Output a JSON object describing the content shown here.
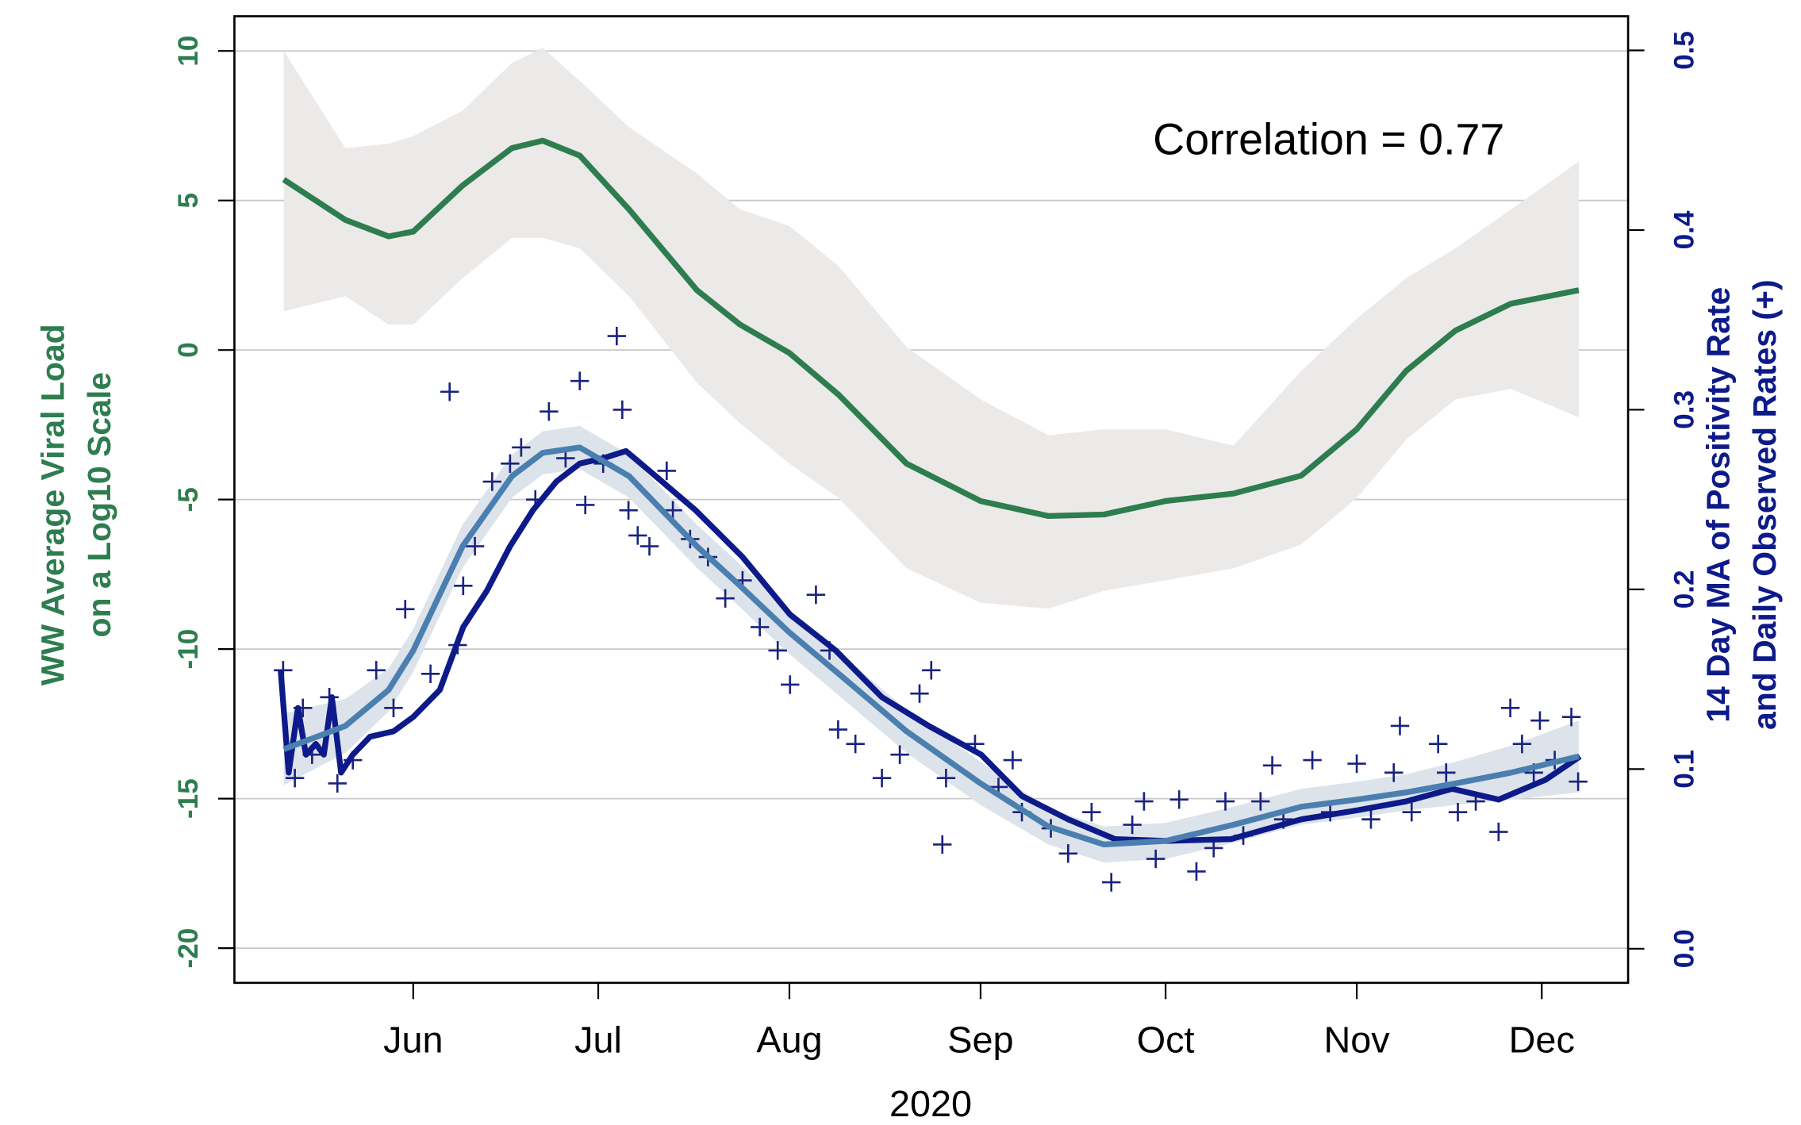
{
  "chart_data": {
    "type": "line",
    "annotation": "Correlation = 0.77",
    "xlabel": "2020",
    "ylabel": [
      "WW Average Viral Load",
      "on a Log10 Scale"
    ],
    "y2label": [
      "14 Day MA of Positivity Rate",
      "and Daily Observed Rates (+)"
    ],
    "xlim": [
      123,
      349
    ],
    "xticks": [
      {
        "value": 152,
        "label": "Jun"
      },
      {
        "value": 182,
        "label": "Jul"
      },
      {
        "value": 213,
        "label": "Aug"
      },
      {
        "value": 244,
        "label": "Sep"
      },
      {
        "value": 274,
        "label": "Oct"
      },
      {
        "value": 305,
        "label": "Nov"
      },
      {
        "value": 335,
        "label": "Dec"
      }
    ],
    "ylim": [
      -21.16,
      11.16
    ],
    "yticks": [
      -20,
      -15,
      -10,
      -5,
      0,
      5,
      10
    ],
    "y2lim": [
      -0.019,
      0.519
    ],
    "y2ticks": [
      {
        "value": 0,
        "label": "0.0"
      },
      0.1,
      0.2,
      0.3,
      0.4,
      0.5
    ],
    "grid": true,
    "ylabel_color": "#2e7d4f",
    "y2label_color": "#0d1a8a",
    "series": [
      {
        "type": "line",
        "axis": "y",
        "color": "#2e7d4f",
        "band_color": "#ece9e9",
        "x": [
          131,
          141,
          148,
          152,
          160,
          168,
          173,
          179,
          187,
          198,
          205,
          213,
          221,
          232,
          244,
          255,
          264,
          274,
          285,
          296,
          305,
          313,
          321,
          330,
          341
        ],
        "values": [
          5.7,
          4.35,
          3.8,
          3.96,
          5.5,
          6.75,
          7.0,
          6.5,
          4.7,
          2.0,
          0.85,
          -0.1,
          -1.5,
          -3.8,
          -5.05,
          -5.55,
          -5.5,
          -5.05,
          -4.8,
          -4.2,
          -2.65,
          -0.7,
          0.65,
          1.55,
          2.0
        ],
        "lower": [
          1.3,
          1.8,
          0.85,
          0.85,
          2.4,
          3.75,
          3.75,
          3.4,
          1.8,
          -1.1,
          -2.45,
          -3.8,
          -4.95,
          -7.3,
          -8.45,
          -8.65,
          -8.05,
          -7.7,
          -7.3,
          -6.5,
          -4.95,
          -3.0,
          -1.65,
          -1.3,
          -2.25
        ],
        "upper": [
          10.0,
          6.75,
          6.9,
          7.15,
          8.0,
          9.6,
          10.1,
          9.0,
          7.45,
          5.9,
          4.7,
          4.15,
          2.8,
          0.1,
          -1.65,
          -2.85,
          -2.65,
          -2.65,
          -3.2,
          -0.7,
          1.05,
          2.4,
          3.4,
          4.7,
          6.3
        ]
      },
      {
        "type": "line",
        "axis": "y2",
        "color": "#4a7fb0",
        "band_color": "#dde3ea",
        "x": [
          131,
          141,
          148,
          152,
          160,
          168,
          173,
          179,
          187,
          198,
          205,
          213,
          221,
          232,
          244,
          255,
          264,
          274,
          285,
          296,
          305,
          313,
          321,
          330,
          341
        ],
        "values": [
          0.111,
          0.124,
          0.144,
          0.166,
          0.224,
          0.263,
          0.276,
          0.279,
          0.263,
          0.224,
          0.202,
          0.176,
          0.153,
          0.121,
          0.092,
          0.068,
          0.058,
          0.06,
          0.069,
          0.079,
          0.083,
          0.087,
          0.092,
          0.098,
          0.107
        ],
        "lower": [
          0.091,
          0.109,
          0.132,
          0.154,
          0.212,
          0.251,
          0.264,
          0.267,
          0.251,
          0.212,
          0.19,
          0.164,
          0.141,
          0.109,
          0.08,
          0.058,
          0.048,
          0.05,
          0.059,
          0.069,
          0.073,
          0.077,
          0.08,
          0.083,
          0.087
        ],
        "upper": [
          0.131,
          0.139,
          0.156,
          0.178,
          0.236,
          0.275,
          0.288,
          0.291,
          0.275,
          0.236,
          0.214,
          0.188,
          0.165,
          0.133,
          0.104,
          0.078,
          0.068,
          0.07,
          0.079,
          0.089,
          0.093,
          0.097,
          0.104,
          0.113,
          0.127
        ]
      },
      {
        "type": "scatter",
        "axis": "y2",
        "color": "#1a237e",
        "x": [
          130.9,
          132.8,
          134.1,
          135.6,
          138.4,
          139.7,
          142.2,
          146,
          148.8,
          150.7,
          154.8,
          157.9,
          159.2,
          160.1,
          162,
          164.8,
          167.7,
          169.5,
          171.8,
          174,
          176.7,
          179,
          179.9,
          182.8,
          185,
          185.9,
          186.9,
          188.4,
          190.3,
          193.1,
          194.1,
          196.9,
          199.8,
          202.6,
          205.4,
          208.2,
          211.1,
          213.1,
          217.3,
          219.5,
          220.9,
          223.7,
          228,
          230.9,
          234.1,
          236,
          238.4,
          237.8,
          243.1,
          246.9,
          249.2,
          250.7,
          255.4,
          258.2,
          262,
          265.2,
          268.6,
          270.5,
          272.4,
          276.2,
          279,
          281.8,
          283.7,
          286.6,
          289.4,
          291.3,
          293.1,
          297.8,
          300.7,
          305,
          307.3,
          311,
          312,
          313.9,
          318.2,
          319.5,
          321.4,
          324.3,
          328,
          329.9,
          331.8,
          333.7,
          334.7,
          337.1,
          339.8,
          340.9
        ],
        "values": [
          0.155,
          0.095,
          0.134,
          0.108,
          0.14,
          0.092,
          0.105,
          0.155,
          0.134,
          0.189,
          0.153,
          0.31,
          0.169,
          0.202,
          0.224,
          0.26,
          0.27,
          0.279,
          0.25,
          0.299,
          0.273,
          0.316,
          0.247,
          0.27,
          0.341,
          0.3,
          0.244,
          0.23,
          0.224,
          0.266,
          0.244,
          0.228,
          0.218,
          0.195,
          0.205,
          0.179,
          0.166,
          0.147,
          0.197,
          0.166,
          0.122,
          0.114,
          0.095,
          0.108,
          0.142,
          0.155,
          0.095,
          0.058,
          0.114,
          0.09,
          0.105,
          0.076,
          0.067,
          0.053,
          0.076,
          0.037,
          0.069,
          0.082,
          0.05,
          0.083,
          0.043,
          0.056,
          0.082,
          0.063,
          0.082,
          0.102,
          0.072,
          0.105,
          0.076,
          0.103,
          0.072,
          0.098,
          0.124,
          0.076,
          0.114,
          0.098,
          0.076,
          0.082,
          0.065,
          0.134,
          0.114,
          0.098,
          0.127,
          0.105,
          0.129,
          0.093
        ]
      },
      {
        "type": "line",
        "axis": "y2",
        "color": "#0d1a8a",
        "x": [
          130.5,
          131.8,
          133.3,
          134.6,
          136.2,
          137.5,
          138.8,
          140.3,
          142.2,
          145,
          148.8,
          152,
          156.3,
          160.1,
          163.9,
          167.7,
          171.4,
          175.2,
          179,
          182.8,
          186.5,
          190.3,
          197.8,
          205.4,
          213.1,
          220.5,
          228,
          235.6,
          244.1,
          250.7,
          258.2,
          265.8,
          274.1,
          284.6,
          296,
          305,
          313,
          320.5,
          328,
          335.6,
          341.2
        ],
        "values": [
          0.155,
          0.098,
          0.134,
          0.108,
          0.114,
          0.108,
          0.14,
          0.098,
          0.108,
          0.118,
          0.121,
          0.129,
          0.144,
          0.179,
          0.199,
          0.224,
          0.244,
          0.26,
          0.27,
          0.273,
          0.277,
          0.266,
          0.244,
          0.218,
          0.186,
          0.166,
          0.14,
          0.124,
          0.108,
          0.085,
          0.072,
          0.061,
          0.06,
          0.061,
          0.072,
          0.077,
          0.082,
          0.089,
          0.083,
          0.094,
          0.107
        ]
      }
    ]
  }
}
